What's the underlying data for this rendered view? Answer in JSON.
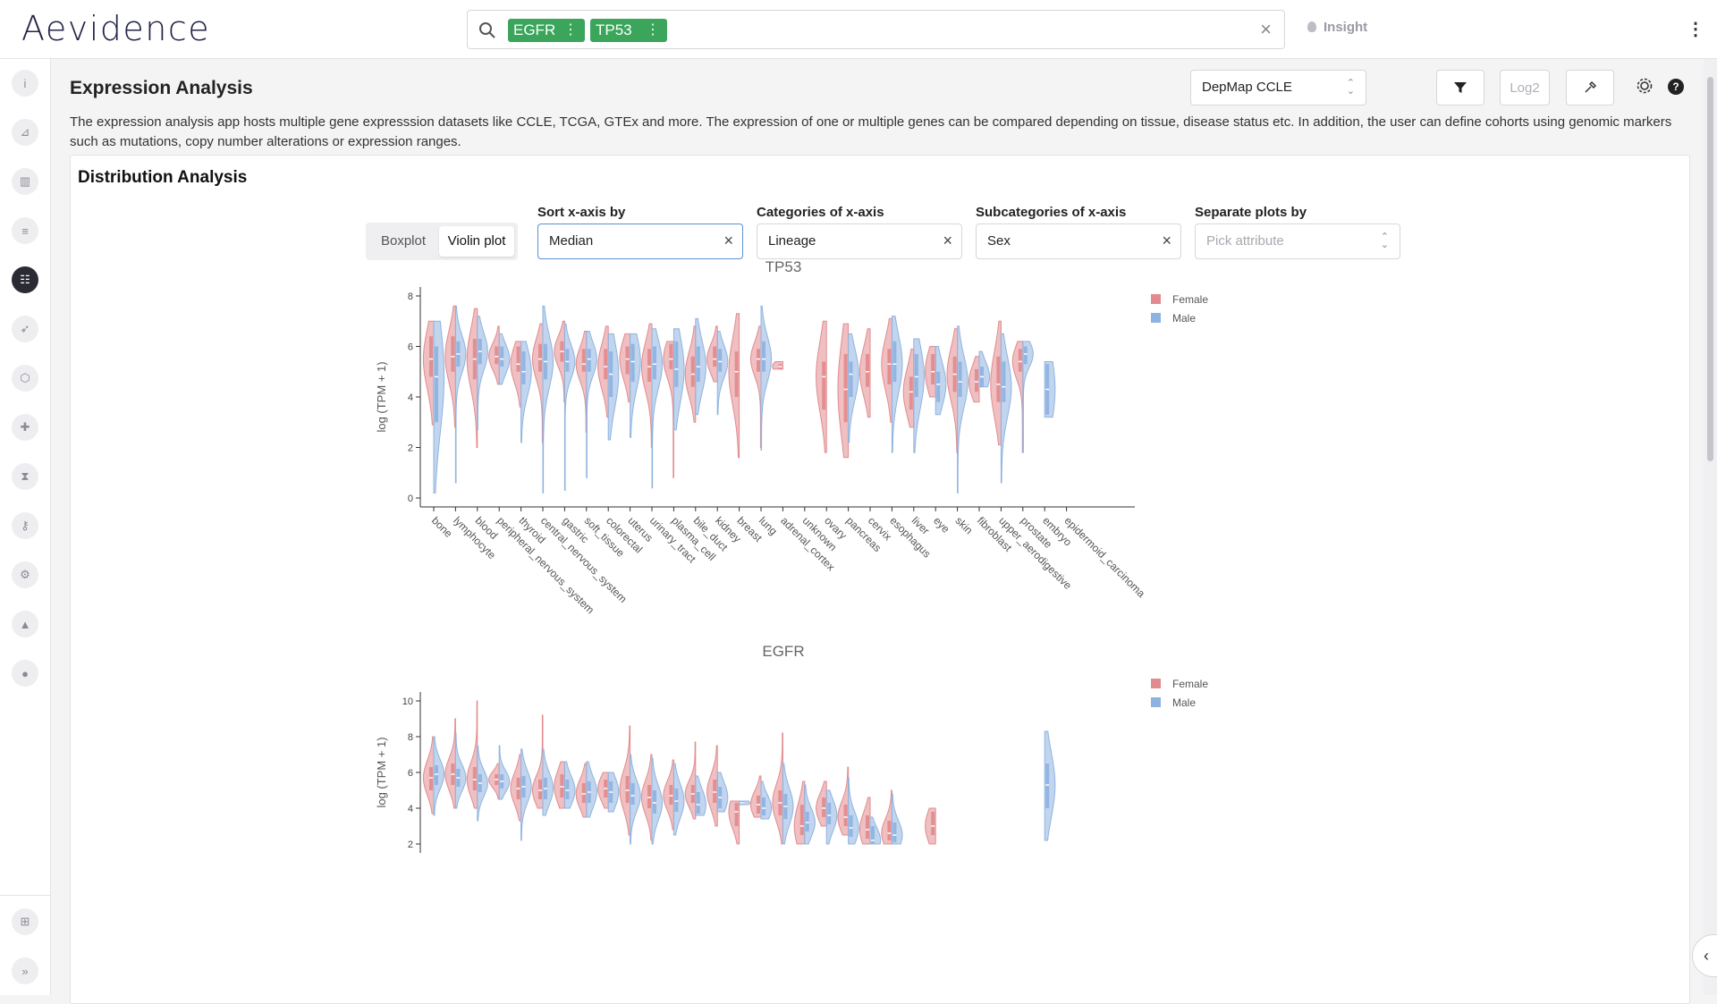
{
  "header": {
    "logo": "Aevidence",
    "search_tags": [
      {
        "label": "EGFR"
      },
      {
        "label": "TP53"
      }
    ],
    "insight_label": "Insight"
  },
  "sidebar": {
    "items": [
      {
        "icon": "info-icon",
        "glyph": "i"
      },
      {
        "icon": "chart-icon",
        "glyph": "⊿"
      },
      {
        "icon": "book-icon",
        "glyph": "▥"
      },
      {
        "icon": "list-icon",
        "glyph": "≡"
      },
      {
        "icon": "sliders-icon",
        "glyph": "☷"
      },
      {
        "icon": "rocket-icon",
        "glyph": "➶"
      },
      {
        "icon": "hexagon-icon",
        "glyph": "⬡"
      },
      {
        "icon": "puzzle-icon",
        "glyph": "✚"
      },
      {
        "icon": "hourglass-icon",
        "glyph": "⧗"
      },
      {
        "icon": "key-icon",
        "glyph": "⚷"
      },
      {
        "icon": "gear-icon",
        "glyph": "⚙"
      },
      {
        "icon": "shapes-icon",
        "glyph": "▲"
      },
      {
        "icon": "bulb-icon",
        "glyph": "●"
      }
    ],
    "bottom": [
      {
        "icon": "grid-icon",
        "glyph": "⊞"
      },
      {
        "icon": "expand-icon",
        "glyph": "»"
      }
    ]
  },
  "page": {
    "title": "Expression Analysis",
    "description": "The expression analysis app hosts multiple gene expresssion datasets like CCLE, TCGA, GTEx and more. The expression of one or multiple genes can be compared depending on tissue, disease status etc. In addition, the user can define cohorts using genomic markers such as mutations, copy number alterations or expression ranges.",
    "dataset": "DepMap CCLE",
    "log_label": "Log2"
  },
  "panel": {
    "title": "Distribution Analysis",
    "plot_types": [
      "Boxplot",
      "Violin plot"
    ],
    "selected_plot_type": "Violin plot",
    "sort": {
      "label": "Sort x-axis by",
      "value": "Median"
    },
    "categories": {
      "label": "Categories of x-axis",
      "value": "Lineage"
    },
    "subcategories": {
      "label": "Subcategories of x-axis",
      "value": "Sex"
    },
    "separate": {
      "label": "Separate plots by",
      "placeholder": "Pick attribute"
    }
  },
  "colors": {
    "female": "#e28b8e",
    "male": "#8fb3e0"
  },
  "chart_data": [
    {
      "type": "violin",
      "title": "TP53",
      "ylabel": "log (TPM + 1)",
      "ylim": [
        0,
        8
      ],
      "yticks": [
        0,
        2,
        4,
        6,
        8
      ],
      "legend": [
        "Female",
        "Male"
      ],
      "legend_position": "top-right",
      "categories": [
        "bone",
        "lymphocyte",
        "blood",
        "peripheral_nervous_system",
        "thyroid",
        "central_nervous_system",
        "gastric",
        "soft_tissue",
        "colorectal",
        "uterus",
        "urinary_tract",
        "plasma_cell",
        "bile_duct",
        "kidney",
        "breast",
        "lung",
        "adrenal_cortex",
        "unknown",
        "ovary",
        "pancreas",
        "cervix",
        "esophagus",
        "liver",
        "eye",
        "skin",
        "fibroblast",
        "upper_aerodigestive",
        "prostate",
        "embryo",
        "epidermoid_carcinoma"
      ],
      "series": [
        {
          "name": "Female",
          "median": [
            5.5,
            5.6,
            5.5,
            5.6,
            5.3,
            5.5,
            5.8,
            5.3,
            5.2,
            5.5,
            5.2,
            5.5,
            4.9,
            5.5,
            5.0,
            5.5,
            5.2,
            null,
            4.8,
            4.3,
            5.0,
            5.3,
            4.2,
            5.0,
            4.9,
            4.6,
            4.5,
            5.4,
            null,
            null
          ],
          "q1": [
            4.8,
            5.0,
            4.7,
            5.3,
            5.0,
            5.0,
            5.4,
            5.0,
            4.7,
            4.9,
            4.6,
            5.1,
            4.4,
            5.2,
            4.0,
            5.0,
            5.1,
            null,
            3.5,
            3.0,
            4.4,
            4.5,
            3.5,
            4.5,
            4.2,
            4.2,
            3.8,
            5.0,
            null,
            null
          ],
          "q3": [
            6.4,
            6.4,
            6.3,
            6.0,
            6.0,
            6.1,
            6.2,
            5.9,
            5.9,
            6.0,
            5.9,
            6.1,
            5.6,
            6.0,
            5.8,
            5.9,
            5.3,
            null,
            5.4,
            5.7,
            5.7,
            5.9,
            4.8,
            5.7,
            5.6,
            5.1,
            5.6,
            5.9,
            null,
            null
          ],
          "min": [
            2.9,
            2.8,
            2.0,
            4.5,
            3.6,
            2.2,
            3.8,
            2.6,
            3.2,
            3.8,
            2.0,
            0.8,
            3.0,
            4.6,
            1.6,
            2.0,
            5.1,
            null,
            1.8,
            1.6,
            3.2,
            3.0,
            2.8,
            4.0,
            1.8,
            3.8,
            2.1,
            1.8,
            null,
            null
          ],
          "max": [
            7.0,
            7.6,
            7.5,
            6.8,
            6.2,
            6.9,
            7.0,
            6.6,
            6.8,
            6.5,
            6.9,
            6.2,
            6.8,
            6.8,
            7.3,
            6.8,
            5.4,
            null,
            7.0,
            6.9,
            6.7,
            7.1,
            5.9,
            6.0,
            6.7,
            5.6,
            7.0,
            6.2,
            null,
            null
          ]
        },
        {
          "name": "Male",
          "median": [
            4.8,
            5.7,
            5.8,
            5.5,
            5.0,
            5.4,
            5.4,
            5.5,
            4.9,
            5.4,
            5.3,
            5.1,
            5.2,
            5.4,
            null,
            5.5,
            null,
            null,
            null,
            4.9,
            null,
            5.3,
            4.8,
            4.5,
            4.6,
            4.8,
            4.4,
            5.7,
            4.3,
            null
          ],
          "q1": [
            3.0,
            5.2,
            5.3,
            5.2,
            4.5,
            4.7,
            5.0,
            5.0,
            4.0,
            4.6,
            4.7,
            4.4,
            4.6,
            5.0,
            null,
            5.0,
            null,
            null,
            null,
            4.0,
            null,
            4.6,
            4.0,
            3.8,
            4.0,
            4.4,
            3.8,
            5.3,
            3.3,
            null
          ],
          "q3": [
            6.0,
            6.2,
            6.3,
            6.0,
            5.8,
            6.1,
            5.9,
            5.9,
            5.8,
            6.1,
            6.0,
            6.2,
            6.0,
            5.9,
            null,
            6.2,
            null,
            null,
            null,
            5.4,
            null,
            6.2,
            5.7,
            5.0,
            5.4,
            5.2,
            5.4,
            6.0,
            5.3,
            null
          ],
          "min": [
            0.2,
            0.6,
            2.7,
            4.5,
            2.2,
            0.2,
            0.3,
            0.8,
            2.3,
            2.4,
            0.4,
            2.7,
            3.3,
            3.3,
            null,
            1.9,
            null,
            null,
            null,
            2.2,
            null,
            1.8,
            1.8,
            3.3,
            0.2,
            4.4,
            0.6,
            1.8,
            3.2,
            null
          ],
          "max": [
            7.0,
            7.6,
            7.2,
            6.5,
            6.2,
            7.6,
            6.9,
            6.6,
            6.5,
            6.5,
            6.7,
            6.7,
            7.1,
            6.6,
            null,
            7.6,
            null,
            null,
            null,
            6.5,
            null,
            7.2,
            6.3,
            6.0,
            6.8,
            5.8,
            6.5,
            6.2,
            5.4,
            null
          ]
        }
      ]
    },
    {
      "type": "violin",
      "title": "EGFR",
      "ylabel": "log (TPM + 1)",
      "ylim": [
        2,
        10
      ],
      "yticks": [
        2,
        4,
        6,
        8,
        10
      ],
      "legend": [
        "Female",
        "Male"
      ],
      "legend_position": "top-right",
      "series": [
        {
          "name": "Female",
          "median": [
            5.7,
            5.9,
            5.6,
            5.6,
            5.1,
            5.0,
            5.2,
            4.8,
            5.1,
            5.0,
            4.6,
            4.7,
            4.8,
            4.9,
            3.8,
            4.2,
            4.3,
            3.0,
            4.0,
            3.5,
            2.8,
            2.6,
            null,
            3.0,
            null,
            null,
            null,
            null,
            null,
            null
          ],
          "q1": [
            5.0,
            5.3,
            5.0,
            5.3,
            4.5,
            4.5,
            4.6,
            4.3,
            4.6,
            4.3,
            4.0,
            4.2,
            4.3,
            4.3,
            3.0,
            3.7,
            3.6,
            2.5,
            3.5,
            3.0,
            2.3,
            2.2,
            null,
            2.5,
            null,
            null,
            null,
            null,
            null,
            null
          ],
          "q3": [
            6.3,
            6.5,
            6.3,
            5.9,
            5.7,
            5.6,
            5.9,
            5.4,
            5.6,
            5.8,
            5.3,
            5.3,
            5.3,
            5.6,
            4.3,
            4.7,
            5.0,
            4.2,
            4.6,
            4.2,
            3.6,
            3.3,
            null,
            3.8,
            null,
            null,
            null,
            null,
            null,
            null
          ],
          "min": [
            3.7,
            4.0,
            4.0,
            4.5,
            3.3,
            4.0,
            4.0,
            3.5,
            4.0,
            2.5,
            2.2,
            2.8,
            3.4,
            3.0,
            2.0,
            3.5,
            2.0,
            2.0,
            3.0,
            2.5,
            2.0,
            2.0,
            null,
            2.0,
            null,
            null,
            null,
            null,
            null,
            null
          ],
          "max": [
            8.0,
            9.0,
            10.0,
            6.5,
            7.0,
            9.2,
            6.6,
            6.5,
            6.0,
            8.6,
            7.0,
            6.7,
            7.7,
            7.5,
            4.4,
            5.8,
            8.2,
            5.5,
            5.5,
            6.3,
            4.6,
            5.0,
            null,
            4.0,
            null,
            null,
            null,
            null,
            null,
            null
          ]
        },
        {
          "name": "Male",
          "median": [
            5.9,
            5.7,
            5.4,
            5.5,
            5.2,
            5.1,
            5.0,
            4.9,
            4.9,
            4.7,
            4.3,
            4.4,
            4.2,
            4.6,
            4.3,
            4.0,
            4.1,
            3.2,
            3.6,
            2.9,
            2.2,
            2.5,
            null,
            null,
            null,
            null,
            null,
            null,
            5.3,
            null
          ],
          "q1": [
            5.3,
            5.2,
            4.9,
            5.1,
            4.6,
            4.5,
            4.5,
            4.3,
            4.3,
            4.2,
            3.7,
            3.8,
            3.7,
            4.0,
            4.2,
            3.6,
            3.4,
            2.7,
            3.1,
            2.4,
            2.0,
            2.1,
            null,
            null,
            null,
            null,
            null,
            null,
            4.0,
            null
          ],
          "q3": [
            6.4,
            6.2,
            5.9,
            5.9,
            5.8,
            5.7,
            5.6,
            5.5,
            5.5,
            5.4,
            5.0,
            5.1,
            4.9,
            5.2,
            4.4,
            4.6,
            4.8,
            3.8,
            4.3,
            3.6,
            3.0,
            3.2,
            null,
            null,
            null,
            null,
            null,
            null,
            6.5,
            null
          ],
          "min": [
            3.6,
            4.0,
            3.3,
            4.5,
            2.2,
            3.6,
            4.0,
            3.5,
            3.8,
            2.0,
            2.0,
            2.5,
            3.6,
            3.8,
            4.2,
            3.4,
            2.0,
            2.0,
            2.0,
            2.0,
            2.0,
            2.0,
            null,
            null,
            null,
            null,
            null,
            null,
            2.2,
            null
          ],
          "max": [
            8.0,
            8.2,
            7.5,
            7.5,
            7.3,
            7.3,
            6.6,
            6.6,
            6.0,
            7.0,
            6.8,
            6.5,
            5.8,
            6.0,
            4.4,
            5.5,
            6.5,
            5.3,
            5.0,
            5.7,
            3.5,
            4.8,
            null,
            null,
            null,
            null,
            null,
            null,
            8.3,
            null
          ]
        }
      ]
    }
  ]
}
